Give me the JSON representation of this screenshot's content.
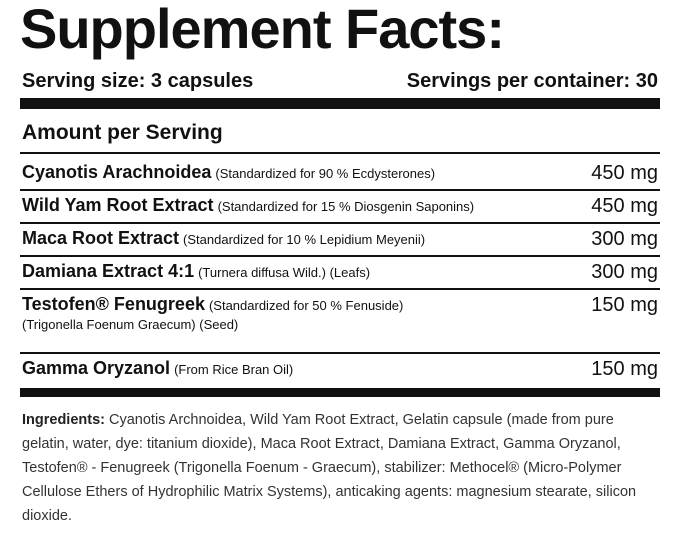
{
  "title": "Supplement Facts:",
  "serving": {
    "size": "Serving size: 3 capsules",
    "per_container": "Servings per container: 30"
  },
  "amount_header": "Amount per Serving",
  "rows": [
    {
      "name": "Cyanotis Arachnoidea",
      "note": "(Standardized for 90 % Ecdysterones)",
      "amount": "450 mg"
    },
    {
      "name": "Wild Yam Root Extract",
      "note": "(Standardized for 15 % Diosgenin Saponins)",
      "amount": "450 mg"
    },
    {
      "name": "Maca Root Extract",
      "note": "(Standardized for 10 % Lepidium Meyenii)",
      "amount": "300 mg"
    },
    {
      "name": "Damiana Extract 4:1",
      "note": "(Turnera diffusa Wild.) (Leafs)",
      "amount": "300 mg"
    },
    {
      "name": "Testofen® Fenugreek",
      "note": "(Standardized for 50 % Fenuside)",
      "note2": "(Trigonella Foenum Graecum) (Seed)",
      "amount": "150 mg"
    },
    {
      "name": "Gamma Oryzanol",
      "note": "(From Rice Bran Oil)",
      "amount": "150 mg"
    }
  ],
  "ingredients": {
    "label": "Ingredients:",
    "text": "Cyanotis Archnoidea, Wild Yam Root Extract, Gelatin capsule (made from pure gelatin, water, dye: titanium dioxide), Maca Root Extract, Damiana Extract, Gamma Oryzanol, Testofen® - Fenugreek (Trigonella Foenum - Graecum), stabilizer: Methocel® (Micro-Polymer Cellulose Ethers of Hydrophilic Matrix Systems), anticaking agents: magnesium stearate, silicon dioxide."
  }
}
